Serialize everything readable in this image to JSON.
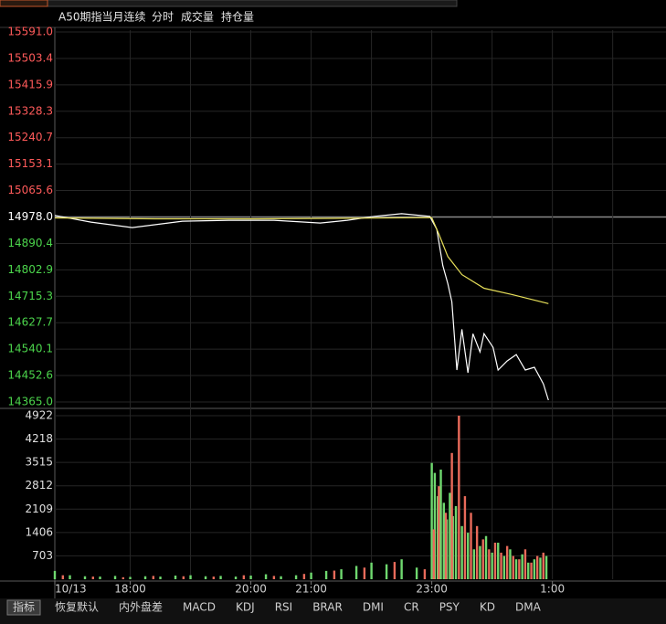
{
  "header": {
    "instrument": "A50期指当月连续",
    "tabs": [
      "分时",
      "成交量",
      "持仓量"
    ]
  },
  "bottom_tabs": [
    "指标",
    "恢复默认",
    "内外盘差",
    "MACD",
    "KDJ",
    "RSI",
    "BRAR",
    "DMI",
    "CR",
    "PSY",
    "KD",
    "DMA"
  ],
  "chart_data": [
    {
      "type": "line",
      "up_color": "#ff5a5a",
      "down_color": "#4cd54c",
      "ref_color": "#ffffff",
      "grid": true,
      "ylim": [
        14365.0,
        15591.0
      ],
      "yticks": [
        {
          "value": 15591.0,
          "label": "15591.0"
        },
        {
          "value": 15503.4,
          "label": "15503.4"
        },
        {
          "value": 15415.9,
          "label": "15415.9"
        },
        {
          "value": 15328.3,
          "label": "15328.3"
        },
        {
          "value": 15240.7,
          "label": "15240.7"
        },
        {
          "value": 15153.1,
          "label": "15153.1"
        },
        {
          "value": 15065.6,
          "label": "15065.6"
        },
        {
          "value": 14978.0,
          "label": "14978.0"
        },
        {
          "value": 14890.4,
          "label": "14890.4"
        },
        {
          "value": 14802.9,
          "label": "14802.9"
        },
        {
          "value": 14715.3,
          "label": "14715.3"
        },
        {
          "value": 14627.7,
          "label": "14627.7"
        },
        {
          "value": 14540.1,
          "label": "14540.1"
        },
        {
          "value": 14452.6,
          "label": "14452.6"
        },
        {
          "value": 14365.0,
          "label": "14365.0"
        }
      ],
      "xlim": [
        0,
        608
      ],
      "xticks": [
        75,
        135,
        195,
        255,
        315,
        375,
        435,
        495,
        555
      ],
      "series": [
        {
          "color": "#ffffff",
          "x": [
            0,
            36,
            77,
            127,
            173,
            218,
            264,
            291,
            318,
            345,
            373,
            380,
            386,
            391,
            395,
            400,
            405,
            411,
            416,
            423,
            427,
            436,
            441,
            450,
            459,
            468,
            477,
            486,
            491
          ],
          "values": [
            14983,
            14961,
            14943,
            14964,
            14967,
            14967,
            14958,
            14967,
            14980,
            14989,
            14980,
            14937,
            14817,
            14757,
            14697,
            14471,
            14606,
            14462,
            14591,
            14531,
            14591,
            14546,
            14471,
            14501,
            14522,
            14471,
            14480,
            14425,
            14371
          ]
        },
        {
          "color": "#e8e05a",
          "x": [
            0,
            100,
            200,
            300,
            375,
            382,
            391,
            405,
            427,
            455,
            491
          ],
          "values": [
            14975,
            14972,
            14972,
            14974,
            14976,
            14922,
            14847,
            14787,
            14742,
            14721,
            14691
          ]
        }
      ]
    },
    {
      "type": "bar",
      "ylim": [
        0,
        4922
      ],
      "yticks": [
        4922,
        4218,
        3515,
        2812,
        2109,
        1406,
        703
      ],
      "xlim": [
        0,
        608
      ],
      "xticks": [
        {
          "value": 0,
          "label": "10/13"
        },
        {
          "value": 75,
          "label": "18:00"
        },
        {
          "value": 195,
          "label": "20:00"
        },
        {
          "value": 255,
          "label": "21:00"
        },
        {
          "value": 375,
          "label": "23:00"
        },
        {
          "value": 495,
          "label": "1:00"
        }
      ],
      "series": [
        {
          "color": "#6fd86f",
          "x": [
            0,
            15,
            30,
            45,
            60,
            75,
            90,
            105,
            120,
            135,
            150,
            165,
            180,
            195,
            210,
            225,
            240,
            255,
            270,
            285,
            300,
            315,
            330,
            345,
            360,
            375,
            378,
            381,
            384,
            387,
            390,
            393,
            396,
            399,
            405,
            411,
            417,
            423,
            429,
            435,
            441,
            447,
            453,
            459,
            465,
            471,
            477,
            483,
            489
          ],
          "values": [
            250,
            120,
            90,
            80,
            100,
            70,
            90,
            80,
            110,
            120,
            90,
            100,
            80,
            110,
            150,
            90,
            120,
            200,
            250,
            300,
            400,
            500,
            450,
            600,
            350,
            3500,
            3200,
            2500,
            3300,
            2300,
            1800,
            2600,
            1900,
            2200,
            1600,
            1400,
            900,
            1000,
            1300,
            800,
            1100,
            700,
            900,
            600,
            750,
            500,
            600,
            650,
            700
          ]
        },
        {
          "color": "#e86a5a",
          "x": [
            8,
            38,
            68,
            98,
            128,
            158,
            188,
            218,
            248,
            278,
            308,
            338,
            368,
            377,
            382,
            389,
            395,
            402,
            408,
            414,
            420,
            426,
            432,
            438,
            444,
            450,
            456,
            462,
            468,
            474,
            480,
            486
          ],
          "values": [
            120,
            80,
            60,
            100,
            90,
            80,
            120,
            100,
            160,
            260,
            350,
            520,
            300,
            1500,
            2800,
            2000,
            3800,
            4922,
            2500,
            2000,
            1600,
            1200,
            900,
            1100,
            800,
            1000,
            700,
            600,
            900,
            500,
            700,
            800
          ]
        }
      ]
    }
  ]
}
